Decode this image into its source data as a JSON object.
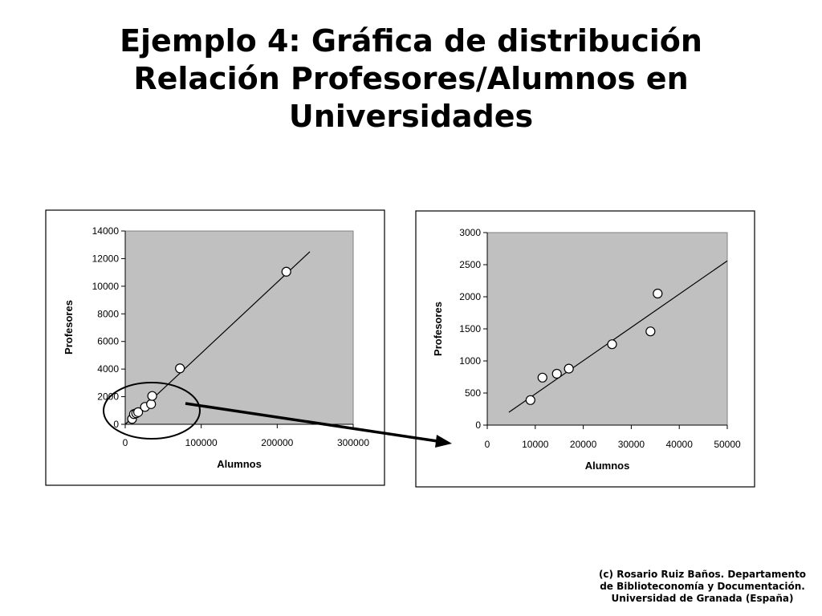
{
  "slide": {
    "title_lines": [
      "Ejemplo 4: Gráfica de distribución",
      "Relación Profesores/Alumnos en",
      "Universidades"
    ],
    "credit_lines": [
      "(c) Rosario Ruiz Baños. Departamento",
      "de Biblioteconomía y Documentación.",
      "Universidad de Granada (España)"
    ]
  },
  "colors": {
    "plot_background": "#c0c0c0",
    "marker_fill": "#ffffff",
    "line": "#000000"
  },
  "chart_data": [
    {
      "type": "scatter",
      "title": "",
      "xlabel": "Alumnos",
      "ylabel": "Profesores",
      "xlim": [
        0,
        300000
      ],
      "ylim": [
        0,
        14000
      ],
      "xticks": [
        "0",
        "100000",
        "200000",
        "300000"
      ],
      "yticks": [
        "0",
        "2000",
        "4000",
        "6000",
        "8000",
        "10000",
        "12000",
        "14000"
      ],
      "grid": false,
      "points": [
        {
          "x": 9000,
          "y": 390
        },
        {
          "x": 11500,
          "y": 740
        },
        {
          "x": 14500,
          "y": 800
        },
        {
          "x": 17000,
          "y": 880
        },
        {
          "x": 26000,
          "y": 1260
        },
        {
          "x": 34000,
          "y": 1460
        },
        {
          "x": 35500,
          "y": 2050
        },
        {
          "x": 72000,
          "y": 4050
        },
        {
          "x": 212000,
          "y": 11050
        }
      ],
      "trendline": {
        "x": [
          0,
          243000
        ],
        "y": [
          0,
          12500
        ]
      },
      "annotation": "ellipse around the points near the origin, with an arrow pointing to the zoomed chart"
    },
    {
      "type": "scatter",
      "title": "",
      "xlabel": "Alumnos",
      "ylabel": "Profesores",
      "xlim": [
        0,
        50000
      ],
      "ylim": [
        0,
        3000
      ],
      "xticks": [
        "0",
        "10000",
        "20000",
        "30000",
        "40000",
        "50000"
      ],
      "yticks": [
        "0",
        "500",
        "1000",
        "1500",
        "2000",
        "2500",
        "3000"
      ],
      "grid": false,
      "points": [
        {
          "x": 9000,
          "y": 390
        },
        {
          "x": 11500,
          "y": 740
        },
        {
          "x": 14500,
          "y": 800
        },
        {
          "x": 17000,
          "y": 880
        },
        {
          "x": 26000,
          "y": 1260
        },
        {
          "x": 34000,
          "y": 1460
        },
        {
          "x": 35500,
          "y": 2050
        }
      ],
      "trendline": {
        "x": [
          4500,
          50000
        ],
        "y": [
          200,
          2560
        ]
      }
    }
  ]
}
